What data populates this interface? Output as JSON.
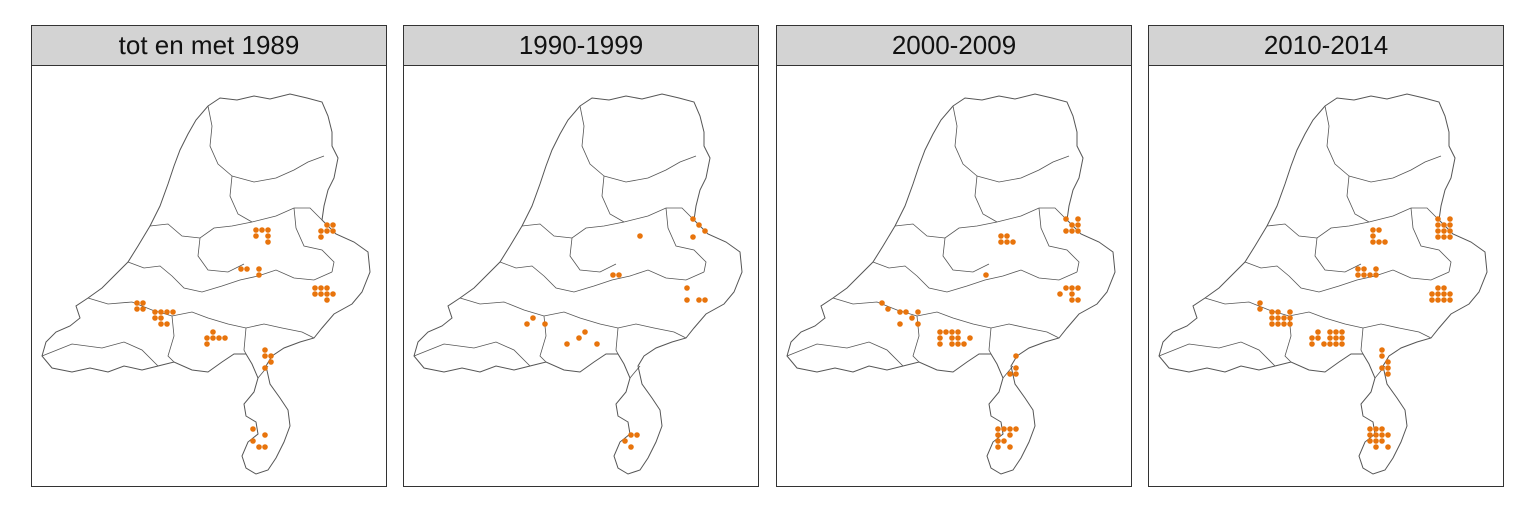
{
  "colors": {
    "dot": "#e8740c",
    "outline": "#555555",
    "header_bg": "#d3d3d3"
  },
  "panels": [
    {
      "title": "tot en met 1989",
      "dot_grid": "regions: Overijssel-east, Gelderland central & east, Noord-Brabant west & central, Limburg north & south"
    },
    {
      "title": "1990-1999",
      "dot_grid": "regions: Achterhoek, Noord-Brabant central, Limburg"
    },
    {
      "title": "2000-2009",
      "dot_grid": "regions: Gelderland scattered, Noord-Brabant dense, Zuid-Limburg dense"
    },
    {
      "title": "2010-2014",
      "dot_grid": "regions: Noord-Brabant very dense, Limburg dense, Achterhoek"
    }
  ]
}
